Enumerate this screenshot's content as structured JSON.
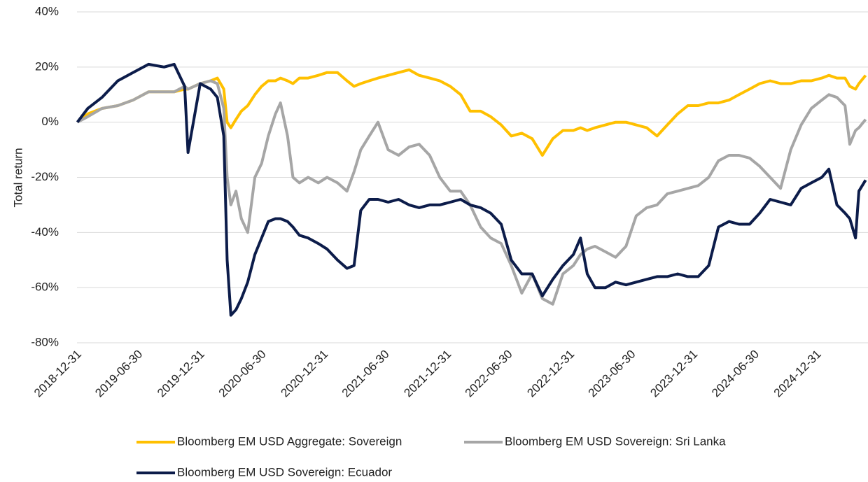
{
  "chart_data": {
    "type": "line",
    "y_label": "Total return",
    "x": [
      "2019-01-01",
      "2019-02-01",
      "2019-03-15",
      "2019-05-01",
      "2019-06-15",
      "2019-07-31",
      "2019-09-15",
      "2019-10-15",
      "2019-11-15",
      "2019-11-25",
      "2019-12-31",
      "2020-01-31",
      "2020-02-20",
      "2020-03-10",
      "2020-03-20",
      "2020-03-31",
      "2020-04-15",
      "2020-05-01",
      "2020-05-20",
      "2020-06-10",
      "2020-06-30",
      "2020-07-20",
      "2020-08-10",
      "2020-08-25",
      "2020-09-15",
      "2020-10-01",
      "2020-10-20",
      "2020-11-15",
      "2020-12-15",
      "2021-01-10",
      "2021-02-10",
      "2021-03-10",
      "2021-03-31",
      "2021-04-20",
      "2021-05-15",
      "2021-06-10",
      "2021-07-10",
      "2021-08-10",
      "2021-09-10",
      "2021-10-10",
      "2021-11-10",
      "2021-12-10",
      "2022-01-10",
      "2022-02-10",
      "2022-03-10",
      "2022-04-10",
      "2022-05-10",
      "2022-06-10",
      "2022-07-10",
      "2022-08-10",
      "2022-09-10",
      "2022-10-10",
      "2022-11-10",
      "2022-12-10",
      "2023-01-10",
      "2023-01-31",
      "2023-02-20",
      "2023-03-15",
      "2023-04-15",
      "2023-05-15",
      "2023-06-15",
      "2023-07-15",
      "2023-08-15",
      "2023-09-15",
      "2023-10-15",
      "2023-11-15",
      "2023-12-15",
      "2024-01-15",
      "2024-02-15",
      "2024-03-15",
      "2024-04-15",
      "2024-05-15",
      "2024-06-15",
      "2024-07-15",
      "2024-08-15",
      "2024-09-15",
      "2024-10-15",
      "2024-11-15",
      "2024-12-15",
      "2025-01-15",
      "2025-02-05",
      "2025-03-01",
      "2025-03-25",
      "2025-04-08",
      "2025-04-25",
      "2025-05-05",
      "2025-05-25"
    ],
    "series": [
      {
        "name": "Bloomberg EM USD Aggregate: Sovereign",
        "color": "#FFC000",
        "values": [
          0,
          3,
          5,
          6,
          8,
          11,
          11,
          11,
          12,
          12,
          14,
          15,
          16,
          12,
          0,
          -2,
          1,
          4,
          6,
          10,
          13,
          15,
          15,
          16,
          15,
          14,
          16,
          16,
          17,
          18,
          18,
          15,
          13,
          14,
          15,
          16,
          17,
          18,
          19,
          17,
          16,
          15,
          13,
          10,
          4,
          4,
          2,
          -1,
          -5,
          -4,
          -6,
          -12,
          -6,
          -3,
          -3,
          -2,
          -3,
          -2,
          -1,
          0,
          0,
          -1,
          -2,
          -5,
          -1,
          3,
          6,
          6,
          7,
          7,
          8,
          10,
          12,
          14,
          15,
          14,
          14,
          15,
          15,
          16,
          17,
          16,
          16,
          13,
          12,
          14,
          17
        ]
      },
      {
        "name": "Bloomberg EM USD Sovereign: Sri Lanka",
        "color": "#A6A6A6",
        "values": [
          0,
          2,
          5,
          6,
          8,
          11,
          11,
          11,
          13,
          12,
          14,
          15,
          14,
          5,
          -20,
          -30,
          -25,
          -35,
          -40,
          -20,
          -15,
          -5,
          3,
          7,
          -5,
          -20,
          -22,
          -20,
          -22,
          -20,
          -22,
          -25,
          -18,
          -10,
          -5,
          0,
          -10,
          -12,
          -9,
          -8,
          -12,
          -20,
          -25,
          -25,
          -30,
          -38,
          -42,
          -44,
          -52,
          -62,
          -55,
          -64,
          -66,
          -55,
          -52,
          -48,
          -46,
          -45,
          -47,
          -49,
          -45,
          -34,
          -31,
          -30,
          -26,
          -25,
          -24,
          -23,
          -20,
          -14,
          -12,
          -12,
          -13,
          -16,
          -20,
          -24,
          -10,
          -1,
          5,
          8,
          10,
          9,
          6,
          -8,
          -3,
          -2,
          1
        ]
      },
      {
        "name": "Bloomberg EM USD Sovereign: Ecuador",
        "color": "#0C1C4A",
        "values": [
          0,
          5,
          9,
          15,
          18,
          21,
          20,
          21,
          13,
          -11,
          14,
          12,
          9,
          -5,
          -50,
          -70,
          -68,
          -64,
          -58,
          -48,
          -42,
          -36,
          -35,
          -35,
          -36,
          -38,
          -41,
          -42,
          -44,
          -46,
          -50,
          -53,
          -52,
          -32,
          -28,
          -28,
          -29,
          -28,
          -30,
          -31,
          -30,
          -30,
          -29,
          -28,
          -30,
          -31,
          -33,
          -37,
          -50,
          -55,
          -55,
          -63,
          -57,
          -52,
          -48,
          -42,
          -55,
          -60,
          -60,
          -58,
          -59,
          -58,
          -57,
          -56,
          -56,
          -55,
          -56,
          -56,
          -52,
          -38,
          -36,
          -37,
          -37,
          -33,
          -28,
          -29,
          -30,
          -24,
          -22,
          -20,
          -17,
          -30,
          -33,
          -35,
          -42,
          -25,
          -21
        ]
      }
    ],
    "xlim": [
      "2018-12-31",
      "2025-06-01"
    ],
    "xticks": [
      "2018-12-31",
      "2019-06-30",
      "2019-12-31",
      "2020-06-30",
      "2020-12-31",
      "2021-06-30",
      "2021-12-31",
      "2022-06-30",
      "2022-12-31",
      "2023-06-30",
      "2023-12-31",
      "2024-06-30",
      "2024-12-31"
    ],
    "ylim": [
      -80,
      40
    ],
    "yticks": [
      {
        "value": -80,
        "label": "-80%"
      },
      {
        "value": -60,
        "label": "-60%"
      },
      {
        "value": -40,
        "label": "-40%"
      },
      {
        "value": -20,
        "label": "-20%"
      },
      {
        "value": 0,
        "label": "0%"
      },
      {
        "value": 20,
        "label": "20%"
      },
      {
        "value": 40,
        "label": "40%"
      }
    ],
    "grid": true
  }
}
